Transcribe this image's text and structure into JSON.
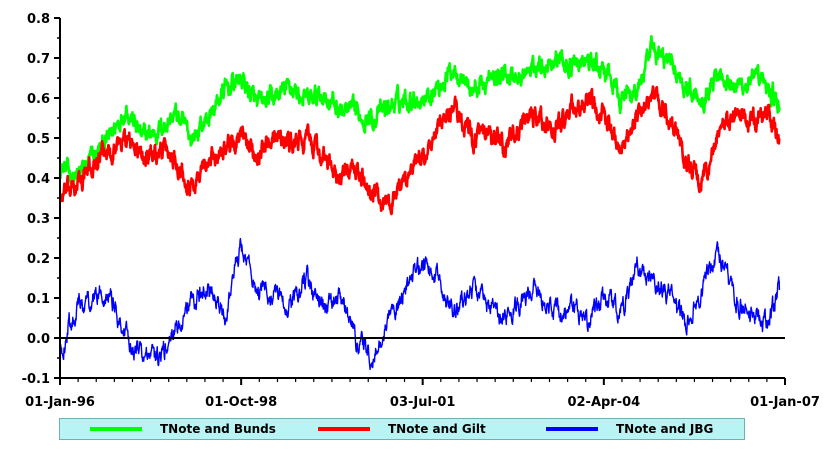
{
  "chart_data": {
    "type": "line",
    "title": "",
    "xlabel": "",
    "ylabel": "",
    "ylim": [
      -0.1,
      0.8
    ],
    "yticks": [
      "-0.1",
      "0.0",
      "0.1",
      "0.2",
      "0.3",
      "0.4",
      "0.5",
      "0.6",
      "0.7",
      "0.8"
    ],
    "xticks": [
      "01-Jan-96",
      "01-Oct-98",
      "03-Jul-01",
      "02-Apr-04",
      "01-Jan-07"
    ],
    "xlim": [
      "1996-01-01",
      "2007-01-01"
    ],
    "zero_line": true,
    "grid": false,
    "legend_position": "bottom",
    "series": [
      {
        "name": "TNote and Bunds",
        "color": "#00ff00",
        "x": [
          "1996-01",
          "1996-04",
          "1996-07",
          "1996-10",
          "1997-01",
          "1997-04",
          "1997-07",
          "1997-10",
          "1998-01",
          "1998-04",
          "1998-07",
          "1998-10",
          "1999-01",
          "1999-04",
          "1999-07",
          "1999-10",
          "2000-01",
          "2000-04",
          "2000-07",
          "2000-10",
          "2001-01",
          "2001-04",
          "2001-07",
          "2001-10",
          "2002-01",
          "2002-04",
          "2002-07",
          "2002-10",
          "2003-01",
          "2003-04",
          "2003-07",
          "2003-10",
          "2004-01",
          "2004-04",
          "2004-07",
          "2004-10",
          "2005-01",
          "2005-04",
          "2005-07",
          "2005-10",
          "2006-01",
          "2006-04",
          "2006-07",
          "2006-10",
          "2006-12"
        ],
        "values": [
          0.43,
          0.4,
          0.45,
          0.5,
          0.58,
          0.5,
          0.52,
          0.56,
          0.5,
          0.55,
          0.62,
          0.65,
          0.58,
          0.6,
          0.63,
          0.59,
          0.61,
          0.57,
          0.56,
          0.55,
          0.58,
          0.6,
          0.6,
          0.63,
          0.68,
          0.62,
          0.64,
          0.66,
          0.65,
          0.68,
          0.7,
          0.68,
          0.69,
          0.67,
          0.6,
          0.62,
          0.72,
          0.69,
          0.63,
          0.6,
          0.67,
          0.63,
          0.64,
          0.63,
          0.57
        ]
      },
      {
        "name": "TNote and Gilt",
        "color": "#ff0000",
        "x": [
          "1996-01",
          "1996-04",
          "1996-07",
          "1996-10",
          "1997-01",
          "1997-04",
          "1997-07",
          "1997-10",
          "1998-01",
          "1998-04",
          "1998-07",
          "1998-10",
          "1999-01",
          "1999-04",
          "1999-07",
          "1999-10",
          "2000-01",
          "2000-04",
          "2000-07",
          "2000-10",
          "2001-01",
          "2001-04",
          "2001-07",
          "2001-10",
          "2002-01",
          "2002-04",
          "2002-07",
          "2002-10",
          "2003-01",
          "2003-04",
          "2003-07",
          "2003-10",
          "2004-01",
          "2004-04",
          "2004-07",
          "2004-10",
          "2005-01",
          "2005-04",
          "2005-07",
          "2005-10",
          "2006-01",
          "2006-04",
          "2006-07",
          "2006-10",
          "2006-12"
        ],
        "values": [
          0.35,
          0.38,
          0.43,
          0.47,
          0.5,
          0.45,
          0.47,
          0.45,
          0.38,
          0.44,
          0.48,
          0.5,
          0.46,
          0.52,
          0.48,
          0.5,
          0.45,
          0.4,
          0.42,
          0.36,
          0.34,
          0.4,
          0.45,
          0.52,
          0.58,
          0.5,
          0.5,
          0.48,
          0.53,
          0.55,
          0.52,
          0.57,
          0.58,
          0.56,
          0.48,
          0.55,
          0.61,
          0.55,
          0.45,
          0.38,
          0.52,
          0.55,
          0.54,
          0.56,
          0.5
        ]
      },
      {
        "name": "TNote and JBG",
        "color": "#0000ff",
        "x": [
          "1996-01",
          "1996-04",
          "1996-07",
          "1996-10",
          "1997-01",
          "1997-04",
          "1997-07",
          "1997-10",
          "1998-01",
          "1998-04",
          "1998-07",
          "1998-10",
          "1999-01",
          "1999-04",
          "1999-07",
          "1999-10",
          "2000-01",
          "2000-04",
          "2000-07",
          "2000-10",
          "2001-01",
          "2001-04",
          "2001-07",
          "2001-10",
          "2002-01",
          "2002-04",
          "2002-07",
          "2002-10",
          "2003-01",
          "2003-04",
          "2003-07",
          "2003-10",
          "2004-01",
          "2004-04",
          "2004-07",
          "2004-10",
          "2005-01",
          "2005-04",
          "2005-07",
          "2005-10",
          "2006-01",
          "2006-04",
          "2006-07",
          "2006-10",
          "2006-12"
        ],
        "values": [
          -0.04,
          0.08,
          0.1,
          0.12,
          0.0,
          -0.04,
          -0.06,
          0.02,
          0.1,
          0.12,
          0.05,
          0.24,
          0.12,
          0.1,
          0.08,
          0.14,
          0.07,
          0.1,
          0.0,
          -0.06,
          0.05,
          0.12,
          0.2,
          0.14,
          0.07,
          0.13,
          0.08,
          0.05,
          0.1,
          0.13,
          0.06,
          0.08,
          0.04,
          0.1,
          0.06,
          0.17,
          0.15,
          0.1,
          0.05,
          0.12,
          0.22,
          0.1,
          0.06,
          0.03,
          0.12
        ]
      }
    ]
  }
}
